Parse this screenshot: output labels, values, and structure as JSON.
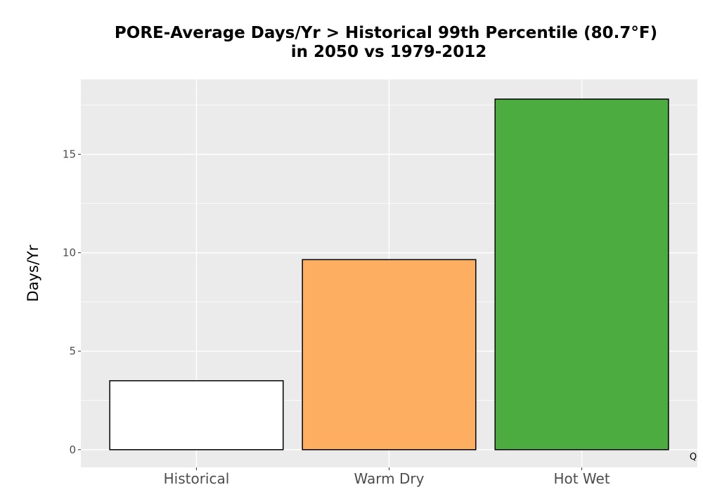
{
  "chart_data": {
    "type": "bar",
    "title_line1": "PORE-Average Days/Yr > Historical 99th Percentile (80.7°F)",
    "title_line2": "in 2050 vs 1979-2012",
    "xlabel": "",
    "ylabel": "Days/Yr",
    "categories": [
      "Historical",
      "Warm Dry",
      "Hot Wet"
    ],
    "values": [
      3.5,
      9.65,
      17.8
    ],
    "bar_colors": [
      "#ffffff",
      "#fdae61",
      "#4dac40"
    ],
    "ylim": [
      -0.9,
      18.8
    ],
    "yticks": [
      0,
      5,
      10,
      15
    ],
    "ytick_labels": [
      "0",
      "5",
      "10",
      "15"
    ],
    "grid": true,
    "panel_background": "#ebebeb",
    "corner_mark": "Q"
  }
}
